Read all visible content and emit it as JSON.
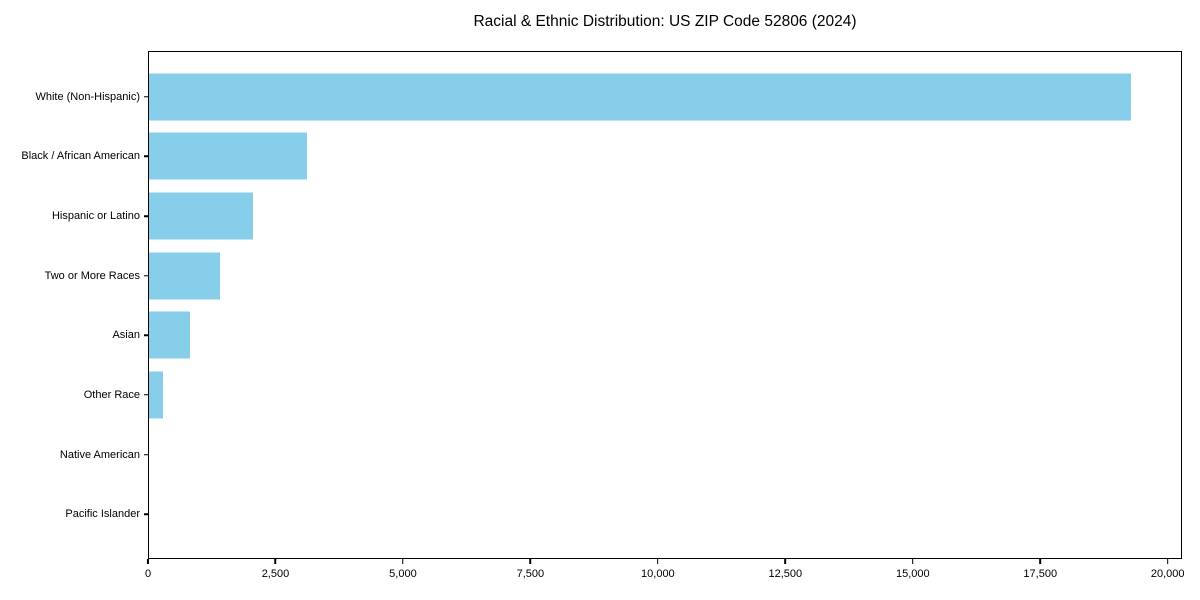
{
  "chart_data": {
    "type": "bar",
    "orientation": "horizontal",
    "title": "Racial & Ethnic Distribution: US ZIP Code 52806 (2024)",
    "categories": [
      "White (Non-Hispanic)",
      "Black / African American",
      "Hispanic or Latino",
      "Two or More Races",
      "Asian",
      "Other Race",
      "Native American",
      "Pacific Islander"
    ],
    "values": [
      19300,
      3100,
      2040,
      1400,
      810,
      270,
      0,
      0
    ],
    "xlabel": "",
    "ylabel": "",
    "xlim": [
      0,
      20280
    ],
    "x_ticks": [
      0,
      2500,
      5000,
      7500,
      10000,
      12500,
      15000,
      17500,
      20000
    ],
    "x_tick_labels": [
      "0",
      "2,500",
      "5,000",
      "7,500",
      "10,000",
      "12,500",
      "15,000",
      "17,500",
      "20,000"
    ],
    "bar_color": "#87CEEB",
    "axis_color": "#000000",
    "text_color": "#000000",
    "grid": false,
    "legend": "none"
  }
}
